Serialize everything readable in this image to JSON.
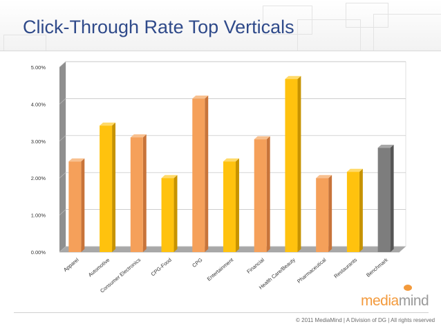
{
  "slide": {
    "title": "Click-Through Rate Top Verticals",
    "copyright": "© 2011 MediaMind | A Division of DG | All rights reserved",
    "logo": {
      "part1": "media",
      "part2": "mind"
    }
  },
  "colors": {
    "orange": "#f5a05a",
    "yellow": "#ffc20e",
    "gray": "#7d7d7d",
    "title": "#2f4a8a"
  },
  "chart_data": {
    "type": "bar",
    "title": "",
    "xlabel": "",
    "ylabel": "",
    "categories": [
      "Apparel",
      "Automotive",
      "Consumer Electronics",
      "CPG-Food",
      "CPG",
      "Entertainment",
      "Financial",
      "Health Care/Beauty",
      "Pharmaceutical",
      "Restaurants",
      "Benchmark"
    ],
    "values": [
      0.0245,
      0.0342,
      0.031,
      0.02,
      0.0415,
      0.0245,
      0.0305,
      0.0468,
      0.02,
      0.0217,
      0.0282
    ],
    "bar_colors": [
      "orange",
      "yellow",
      "orange",
      "yellow",
      "orange",
      "yellow",
      "orange",
      "yellow",
      "orange",
      "yellow",
      "gray"
    ],
    "y_ticks": [
      "0.00%",
      "1.00%",
      "2.00%",
      "3.00%",
      "4.00%",
      "5.00%"
    ],
    "ylim": [
      0,
      0.05
    ],
    "grid": true,
    "legend": false,
    "style": "3d"
  }
}
